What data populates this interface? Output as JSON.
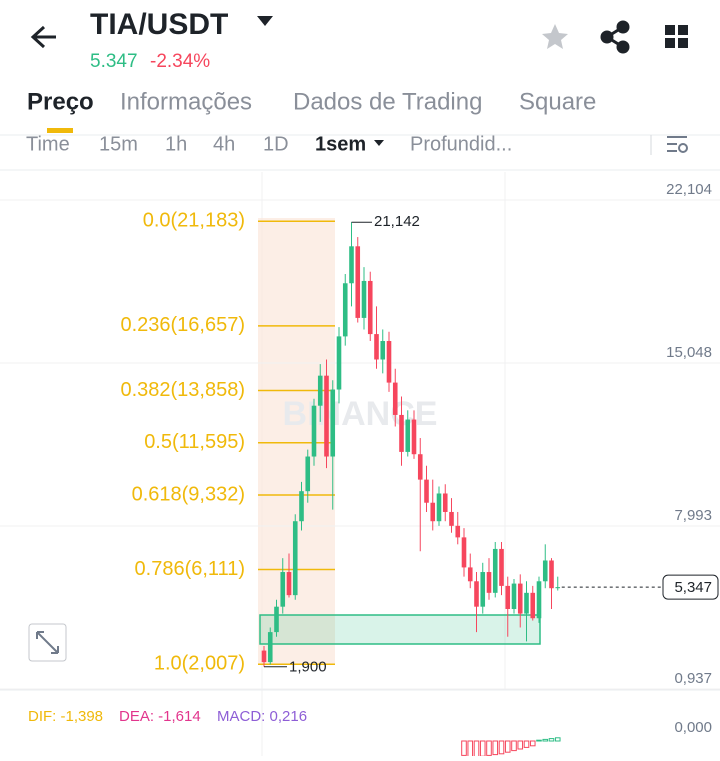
{
  "header": {
    "pair": "TIA/USDT",
    "price": "5.347",
    "change": "-2.34%"
  },
  "tabs": [
    "Preço",
    "Informações",
    "Dados de Trading",
    "Square"
  ],
  "intervals": [
    "Time",
    "15m",
    "1h",
    "4h",
    "1D",
    "1sem",
    "Profundid..."
  ],
  "watermark": "BINANCE",
  "chart_data": {
    "type": "candlestick",
    "up_color": "#2ebd85",
    "down_color": "#f6465d",
    "ylim": [
      0.937,
      23.316
    ],
    "yticks": [
      {
        "value": 22.104,
        "label": "22,104"
      },
      {
        "value": 15.048,
        "label": "15,048"
      },
      {
        "value": 7.993,
        "label": "7,993"
      },
      {
        "value": 0.937,
        "label": "0,937"
      }
    ],
    "grid": true,
    "open": [
      2.6,
      2.1,
      3.4,
      4.5,
      6.0,
      5.0,
      8.2,
      9.5,
      11.0,
      13.2,
      14.5,
      11.0,
      13.9,
      16.2,
      18.5,
      20.1,
      17.0,
      18.6,
      16.3,
      15.2,
      16.0,
      14.2,
      12.8,
      11.2,
      12.6,
      11.1,
      10.0,
      9.0,
      8.2,
      9.4,
      8.6,
      8.0,
      7.5,
      6.2,
      5.6,
      4.5,
      6.0,
      5.1,
      7.0,
      5.4,
      4.4,
      5.5,
      4.2,
      5.1,
      4.0,
      5.6,
      6.5,
      5.3
    ],
    "high": [
      2.8,
      3.6,
      4.8,
      6.6,
      6.8,
      8.5,
      9.9,
      11.3,
      13.5,
      15.0,
      15.2,
      14.3,
      16.6,
      18.9,
      21.142,
      20.5,
      19.2,
      19.0,
      17.5,
      16.5,
      16.4,
      14.8,
      13.6,
      13.0,
      13.0,
      11.8,
      10.6,
      10.0,
      9.7,
      9.8,
      9.2,
      8.6,
      7.9,
      6.8,
      6.0,
      6.4,
      6.6,
      7.3,
      7.3,
      5.8,
      5.7,
      5.9,
      5.6,
      5.4,
      5.8,
      7.2,
      6.6,
      5.8
    ],
    "low": [
      1.9,
      2.0,
      3.2,
      4.2,
      4.9,
      4.8,
      7.8,
      9.0,
      10.6,
      12.5,
      10.5,
      8.7,
      13.3,
      15.8,
      17.5,
      16.8,
      16.5,
      16.0,
      14.8,
      14.6,
      13.8,
      12.3,
      10.6,
      11.0,
      10.9,
      6.9,
      8.6,
      7.8,
      8.0,
      8.2,
      7.7,
      7.2,
      5.8,
      5.3,
      3.4,
      4.2,
      4.8,
      4.9,
      5.0,
      3.2,
      4.2,
      3.6,
      3.0,
      3.9,
      3.8,
      5.3,
      4.4,
      5.2
    ],
    "close": [
      2.1,
      3.4,
      4.5,
      6.0,
      5.0,
      8.2,
      9.5,
      11.0,
      13.2,
      14.5,
      11.0,
      13.9,
      16.2,
      18.5,
      20.1,
      17.0,
      18.6,
      16.3,
      15.2,
      16.0,
      14.2,
      12.8,
      11.2,
      12.6,
      11.1,
      10.0,
      9.0,
      8.2,
      9.4,
      8.6,
      8.0,
      7.5,
      6.2,
      5.6,
      4.5,
      6.0,
      5.1,
      7.0,
      5.4,
      4.4,
      5.5,
      4.2,
      5.1,
      4.0,
      5.6,
      6.5,
      5.3,
      5.347
    ],
    "fib_color": "#f0b90b",
    "fib_levels": [
      {
        "value": 21.183,
        "label": "0.0(21,183)"
      },
      {
        "value": 16.657,
        "label": "0.236(16,657)"
      },
      {
        "value": 13.858,
        "label": "0.382(13,858)"
      },
      {
        "value": 11.595,
        "label": "0.5(11,595)"
      },
      {
        "value": 9.332,
        "label": "0.618(9,332)"
      },
      {
        "value": 6.111,
        "label": "0.786(6,111)"
      },
      {
        "value": 2.007,
        "label": "1.0(2,007)"
      }
    ],
    "high_label": {
      "value": 21.142,
      "label": "21,142"
    },
    "low_label": {
      "value": 1.9,
      "label": "1,900"
    },
    "last_price": {
      "value": 5.347,
      "label": "5,347"
    }
  },
  "indicator": {
    "dif": "DIF: -1,398",
    "dea": "DEA: -1,614",
    "macd": "MACD: 0,216",
    "zero_label": "0,000",
    "histogram": [
      -0.9,
      -1.0,
      -1.0,
      -0.95,
      -0.9,
      -0.85,
      -0.8,
      -0.7,
      -0.6,
      -0.5,
      -0.4,
      -0.3,
      0.05,
      0.1,
      0.15,
      0.2
    ]
  }
}
